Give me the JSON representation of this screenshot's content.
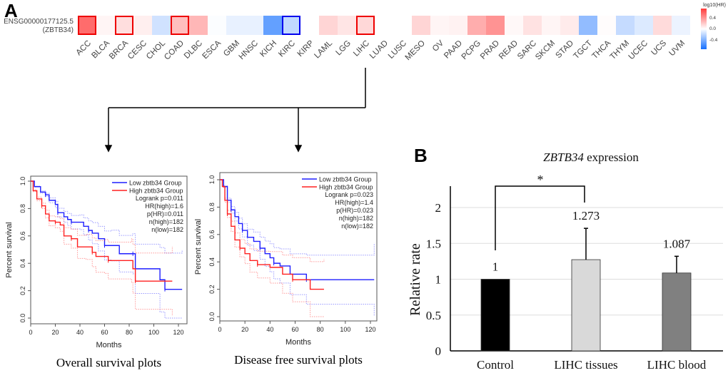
{
  "panel_labels": {
    "a": "A",
    "b": "B"
  },
  "chart_data": [
    {
      "type": "heatmap",
      "row_label_line1": "ENSG00000177125.5",
      "row_label_line2": "(ZBTB34)",
      "legend_title": "log10(HR)",
      "legend_ticks": [
        "0.4",
        "0.0",
        "-0.4"
      ],
      "legend_range": [
        -0.6,
        0.6
      ],
      "cells": [
        {
          "cancer": "ACC",
          "value": 0.45,
          "highlight": "red"
        },
        {
          "cancer": "BLCA",
          "value": 0.03,
          "highlight": ""
        },
        {
          "cancer": "BRCA",
          "value": 0.1,
          "highlight": "red"
        },
        {
          "cancer": "CESC",
          "value": 0.05,
          "highlight": ""
        },
        {
          "cancer": "CHOL",
          "value": -0.12,
          "highlight": ""
        },
        {
          "cancer": "COAD",
          "value": 0.2,
          "highlight": "red"
        },
        {
          "cancer": "DLBC",
          "value": 0.22,
          "highlight": ""
        },
        {
          "cancer": "ESCA",
          "value": -0.01,
          "highlight": ""
        },
        {
          "cancer": "GBM",
          "value": -0.06,
          "highlight": ""
        },
        {
          "cancer": "HNSC",
          "value": -0.06,
          "highlight": ""
        },
        {
          "cancer": "KICH",
          "value": -0.4,
          "highlight": ""
        },
        {
          "cancer": "KIRC",
          "value": -0.16,
          "highlight": "blue"
        },
        {
          "cancer": "KIRP",
          "value": null,
          "highlight": ""
        },
        {
          "cancer": "LAML",
          "value": 0.13,
          "highlight": ""
        },
        {
          "cancer": "LGG",
          "value": 0.08,
          "highlight": ""
        },
        {
          "cancer": "LIHC",
          "value": 0.12,
          "highlight": "red"
        },
        {
          "cancer": "LUAD",
          "value": null,
          "highlight": ""
        },
        {
          "cancer": "LUSC",
          "value": null,
          "highlight": ""
        },
        {
          "cancer": "MESO",
          "value": 0.13,
          "highlight": ""
        },
        {
          "cancer": "OV",
          "value": 0.03,
          "highlight": ""
        },
        {
          "cancer": "PAAD",
          "value": 0.04,
          "highlight": ""
        },
        {
          "cancer": "PCPG",
          "value": 0.25,
          "highlight": ""
        },
        {
          "cancer": "PRAD",
          "value": 0.33,
          "highlight": ""
        },
        {
          "cancer": "READ",
          "value": 0.02,
          "highlight": ""
        },
        {
          "cancer": "SARC",
          "value": 0.09,
          "highlight": ""
        },
        {
          "cancer": "SKCM",
          "value": 0.03,
          "highlight": ""
        },
        {
          "cancer": "STAD",
          "value": 0.06,
          "highlight": ""
        },
        {
          "cancer": "TGCT",
          "value": -0.28,
          "highlight": ""
        },
        {
          "cancer": "THCA",
          "value": 0.01,
          "highlight": ""
        },
        {
          "cancer": "THYM",
          "value": -0.15,
          "highlight": ""
        },
        {
          "cancer": "UCEC",
          "value": -0.09,
          "highlight": ""
        },
        {
          "cancer": "UCS",
          "value": 0.11,
          "highlight": ""
        },
        {
          "cancer": "UVM",
          "value": -0.05,
          "highlight": ""
        }
      ]
    },
    {
      "type": "line",
      "title": "Overall survival plots",
      "xlabel": "Months",
      "ylabel": "Percent survival",
      "xlim": [
        0,
        120
      ],
      "ylim": [
        0,
        1
      ],
      "xticks": [
        "0",
        "20",
        "40",
        "60",
        "80",
        "100",
        "120"
      ],
      "yticks": [
        "0.0",
        "0.2",
        "0.4",
        "0.6",
        "0.8",
        "1.0"
      ],
      "legend": [
        "Low zbtb34 Group",
        "High zbtb34 Group"
      ],
      "stats": [
        "Logrank p=0.011",
        "HR(high)=1.6",
        "p(HR)=0.011",
        "n(high)=182",
        "n(low)=182"
      ],
      "series": [
        {
          "name": "Low zbtb34 Group",
          "color": "#1f1fff",
          "points": [
            [
              0,
              1
            ],
            [
              3,
              0.96
            ],
            [
              8,
              0.92
            ],
            [
              12,
              0.9
            ],
            [
              15,
              0.86
            ],
            [
              20,
              0.83
            ],
            [
              22,
              0.77
            ],
            [
              27,
              0.74
            ],
            [
              30,
              0.72
            ],
            [
              33,
              0.7
            ],
            [
              40,
              0.7
            ],
            [
              43,
              0.67
            ],
            [
              47,
              0.64
            ],
            [
              50,
              0.62
            ],
            [
              55,
              0.58
            ],
            [
              60,
              0.53
            ],
            [
              66,
              0.53
            ],
            [
              72,
              0.47
            ],
            [
              83,
              0.47
            ],
            [
              85,
              0.36
            ],
            [
              105,
              0.28
            ],
            [
              109,
              0.21
            ],
            [
              123,
              0.21
            ]
          ]
        },
        {
          "name": "High zbtb34 Group",
          "color": "#ff2020",
          "points": [
            [
              0,
              1
            ],
            [
              2,
              0.93
            ],
            [
              5,
              0.87
            ],
            [
              9,
              0.82
            ],
            [
              12,
              0.76
            ],
            [
              15,
              0.71
            ],
            [
              20,
              0.7
            ],
            [
              24,
              0.68
            ],
            [
              27,
              0.6
            ],
            [
              33,
              0.58
            ],
            [
              38,
              0.52
            ],
            [
              45,
              0.52
            ],
            [
              50,
              0.48
            ],
            [
              53,
              0.45
            ],
            [
              60,
              0.45
            ],
            [
              63,
              0.42
            ],
            [
              82,
              0.42
            ],
            [
              83,
              0.36
            ],
            [
              85,
              0.27
            ],
            [
              115,
              0.27
            ]
          ]
        }
      ]
    },
    {
      "type": "line",
      "title": "Disease free survival plots",
      "xlabel": "Months",
      "ylabel": "Percent survival",
      "xlim": [
        0,
        120
      ],
      "ylim": [
        0,
        1
      ],
      "xticks": [
        "0",
        "20",
        "40",
        "60",
        "80",
        "100",
        "120"
      ],
      "yticks": [
        "0.0",
        "0.2",
        "0.4",
        "0.6",
        "0.8",
        "1.0"
      ],
      "legend": [
        "Low zbtb34 Group",
        "High zbtb34 Group"
      ],
      "stats": [
        "Logrank p=0.023",
        "HR(high)=1.4",
        "p(HR)=0.023",
        "n(high)=182",
        "n(low)=182"
      ],
      "series": [
        {
          "name": "Low zbtb34 Group",
          "color": "#1f1fff",
          "points": [
            [
              0,
              1
            ],
            [
              3,
              0.95
            ],
            [
              6,
              0.85
            ],
            [
              9,
              0.78
            ],
            [
              12,
              0.73
            ],
            [
              15,
              0.68
            ],
            [
              18,
              0.63
            ],
            [
              22,
              0.58
            ],
            [
              27,
              0.55
            ],
            [
              32,
              0.5
            ],
            [
              36,
              0.46
            ],
            [
              40,
              0.43
            ],
            [
              43,
              0.39
            ],
            [
              48,
              0.37
            ],
            [
              56,
              0.31
            ],
            [
              69,
              0.27
            ],
            [
              123,
              0.27
            ]
          ]
        },
        {
          "name": "High zbtb34 Group",
          "color": "#ff2020",
          "points": [
            [
              0,
              1
            ],
            [
              2,
              0.95
            ],
            [
              4,
              0.85
            ],
            [
              6,
              0.75
            ],
            [
              9,
              0.66
            ],
            [
              12,
              0.56
            ],
            [
              16,
              0.5
            ],
            [
              20,
              0.46
            ],
            [
              24,
              0.41
            ],
            [
              30,
              0.38
            ],
            [
              40,
              0.36
            ],
            [
              50,
              0.31
            ],
            [
              58,
              0.27
            ],
            [
              72,
              0.2
            ],
            [
              83,
              0.2
            ]
          ]
        }
      ]
    },
    {
      "type": "bar",
      "title_italic": "ZBTB34",
      "title_rest": " expression",
      "ylabel": "Relative rate",
      "ylim": [
        0,
        2.3
      ],
      "yticks": [
        "0",
        "0.5",
        "1",
        "1.5",
        "2"
      ],
      "categories": [
        "Control",
        "LIHC tissues",
        "LIHC blood"
      ],
      "values": [
        1,
        1.273,
        1.087
      ],
      "value_labels": [
        "1",
        "1.273",
        "1.087"
      ],
      "error_upper": [
        1.0,
        1.71,
        1.32
      ],
      "colors": [
        "#000000",
        "#d9d9d9",
        "#808080"
      ],
      "significance": "*"
    }
  ]
}
